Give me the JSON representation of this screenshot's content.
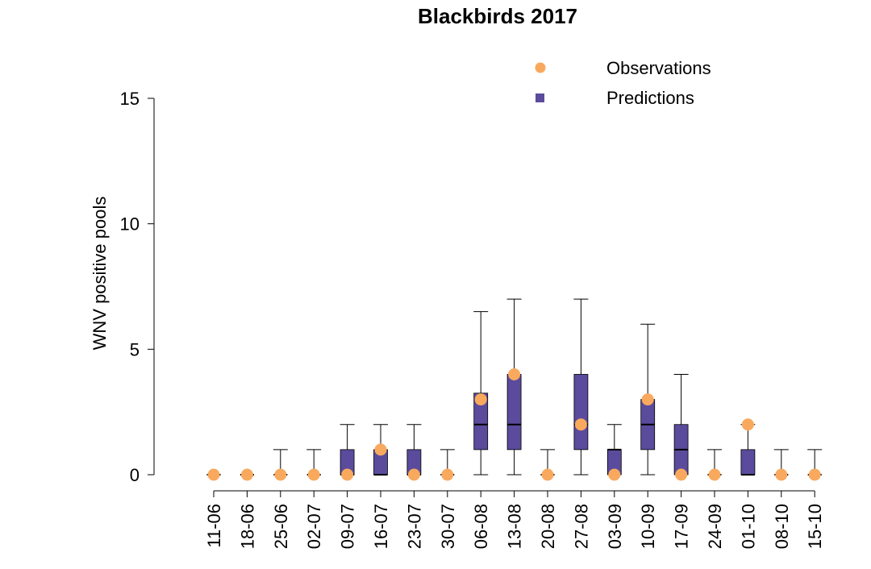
{
  "chart_data": {
    "type": "box",
    "title": "Blackbirds 2017",
    "xlabel": "",
    "ylabel": "WNV positive pools",
    "ylim": [
      0,
      15
    ],
    "yticks": [
      0,
      5,
      10,
      15
    ],
    "grid": false,
    "legend_position": "top-right",
    "colors": {
      "predictions": "#5b4b9c",
      "observations": "#f9a95e"
    },
    "categories": [
      "11-06",
      "18-06",
      "25-06",
      "02-07",
      "09-07",
      "16-07",
      "23-07",
      "30-07",
      "06-08",
      "13-08",
      "20-08",
      "27-08",
      "03-09",
      "10-09",
      "17-09",
      "24-09",
      "01-10",
      "08-10",
      "15-10"
    ],
    "series": [
      {
        "name": "Observations",
        "kind": "points",
        "values": [
          0,
          0,
          0,
          0,
          0,
          1,
          0,
          0,
          3,
          4,
          0,
          2,
          0,
          3,
          0,
          0,
          2,
          0,
          0
        ]
      },
      {
        "name": "Predictions",
        "kind": "boxplot",
        "boxes": [
          {
            "min": 0,
            "q1": 0,
            "median": 0,
            "q3": 0,
            "max": 0
          },
          {
            "min": 0,
            "q1": 0,
            "median": 0,
            "q3": 0,
            "max": 0
          },
          {
            "min": 0,
            "q1": 0,
            "median": 0,
            "q3": 0,
            "max": 1
          },
          {
            "min": 0,
            "q1": 0,
            "median": 0,
            "q3": 0,
            "max": 1
          },
          {
            "min": 0,
            "q1": 0,
            "median": 0,
            "q3": 1,
            "max": 2
          },
          {
            "min": 0,
            "q1": 0,
            "median": 0,
            "q3": 1,
            "max": 2
          },
          {
            "min": 0,
            "q1": 0,
            "median": 0,
            "q3": 1,
            "max": 2
          },
          {
            "min": 0,
            "q1": 0,
            "median": 0,
            "q3": 0,
            "max": 1
          },
          {
            "min": 0,
            "q1": 1,
            "median": 2,
            "q3": 3.25,
            "max": 6.5
          },
          {
            "min": 0,
            "q1": 1,
            "median": 2,
            "q3": 4,
            "max": 7
          },
          {
            "min": 0,
            "q1": 0,
            "median": 0,
            "q3": 0,
            "max": 1
          },
          {
            "min": 0,
            "q1": 1,
            "median": 2,
            "q3": 4,
            "max": 7
          },
          {
            "min": 0,
            "q1": 0,
            "median": 1,
            "q3": 1,
            "max": 2
          },
          {
            "min": 0,
            "q1": 1,
            "median": 2,
            "q3": 3,
            "max": 6
          },
          {
            "min": 0,
            "q1": 0,
            "median": 1,
            "q3": 2,
            "max": 4
          },
          {
            "min": 0,
            "q1": 0,
            "median": 0,
            "q3": 0,
            "max": 1
          },
          {
            "min": 0,
            "q1": 0,
            "median": 0,
            "q3": 1,
            "max": 2
          },
          {
            "min": 0,
            "q1": 0,
            "median": 0,
            "q3": 0,
            "max": 1
          },
          {
            "min": 0,
            "q1": 0,
            "median": 0,
            "q3": 0,
            "max": 1
          }
        ]
      }
    ]
  }
}
